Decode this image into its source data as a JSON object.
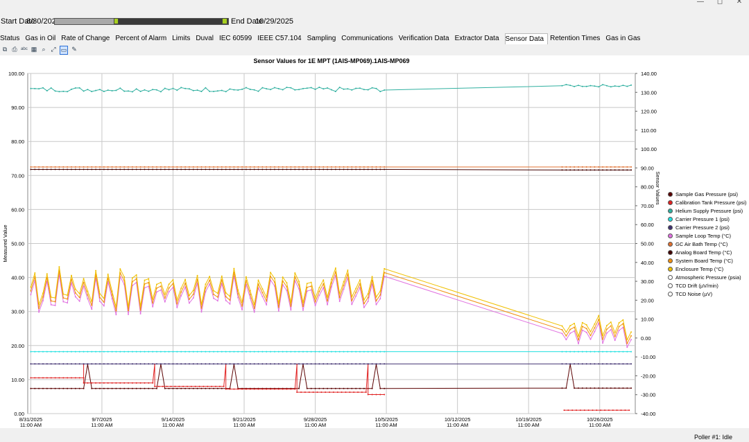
{
  "window": {
    "controls": [
      "—",
      "◻",
      "✕"
    ]
  },
  "dates": {
    "start_label": "Start Date",
    "start_value": "8/30/2025",
    "end_label": "End Date",
    "end_value": "10/29/2025"
  },
  "tabs": [
    "Status",
    "Gas in Oil",
    "Rate of Change",
    "Percent of Alarm",
    "Limits",
    "Duval",
    "IEC 60599",
    "IEEE C57.104",
    "Sampling",
    "Communications",
    "Verification Data",
    "Extractor Data",
    "Sensor Data",
    "Retention Times",
    "Gas in Gas"
  ],
  "active_tab": "Sensor Data",
  "toolbar_icons": [
    "copy-icon",
    "print-icon",
    "abc-icon",
    "table-icon",
    "zoom-icon",
    "fit-icon",
    "comment-icon",
    "pencil-icon"
  ],
  "status": {
    "text": "Poller #1: Idle"
  },
  "chart_data": {
    "type": "line",
    "title": "Sensor Values for 1E MPT (1AIS-MP069).1AIS-MP069",
    "ylabel": "Measured Value",
    "y2label": "Sensor Values",
    "ylim": [
      0,
      100
    ],
    "y2lim": [
      -40,
      140
    ],
    "yticks": [
      "100.00",
      "90.00",
      "80.00",
      "70.00",
      "60.00",
      "50.00",
      "40.00",
      "30.00",
      "20.00",
      "10.00",
      "0.00"
    ],
    "y2ticks": [
      "140.00",
      "130.00",
      "120.00",
      "110.00",
      "100.00",
      "90.00",
      "80.00",
      "70.00",
      "60.00",
      "50.00",
      "40.00",
      "30.00",
      "20.00",
      "10.00",
      "0.00",
      "-10.00",
      "-20.00",
      "-30.00",
      "-40.00"
    ],
    "xticks": [
      {
        "date": "8/31/2025",
        "time": "11:00 AM"
      },
      {
        "date": "9/7/2025",
        "time": "11:00 AM"
      },
      {
        "date": "9/14/2025",
        "time": "11:00 AM"
      },
      {
        "date": "9/21/2025",
        "time": "11:00 AM"
      },
      {
        "date": "9/28/2025",
        "time": "11:00 AM"
      },
      {
        "date": "10/5/2025",
        "time": "11:00 AM"
      },
      {
        "date": "10/12/2025",
        "time": "11:00 AM"
      },
      {
        "date": "10/19/2025",
        "time": "11:00 AM"
      },
      {
        "date": "10/26/2025",
        "time": "11:00 AM"
      }
    ],
    "x_range_days": [
      -0.3,
      59.5
    ],
    "gap_days": [
      35.0,
      52.3
    ],
    "legend_position": "right",
    "series": [
      {
        "name": "Sample Gas Pressure (psi)",
        "color": "#5a0000",
        "axis": "left",
        "pre": 7.4,
        "post": 7.5,
        "spikes": [
          {
            "x": 6,
            "to": 14.5
          }
        ],
        "kind": "const"
      },
      {
        "name": "Calibration Tank Pressure (psi)",
        "color": "#e02020",
        "axis": "left",
        "steps": [
          [
            0,
            10.5
          ],
          [
            5.2,
            9.0
          ],
          [
            12.2,
            8.0
          ],
          [
            19.2,
            7.2
          ],
          [
            26.2,
            6.3
          ],
          [
            33.2,
            5.6
          ],
          [
            52.5,
            1.0
          ]
        ],
        "kind": "steps"
      },
      {
        "name": "Helium Supply Pressure (psi)",
        "color": "#30b0a0",
        "axis": "right",
        "pre": 131.5,
        "post": 133.5,
        "kind": "noisy",
        "noise": 1.2
      },
      {
        "name": "Carrier Pressure 1 (psi)",
        "color": "#20e0e0",
        "axis": "left",
        "pre": 18.2,
        "post": 18.2,
        "kind": "const"
      },
      {
        "name": "Carrier Pressure 2 (psi)",
        "color": "#403070",
        "axis": "left",
        "pre": 14.6,
        "post": 14.6,
        "kind": "const"
      },
      {
        "name": "Sample Loop  Temp (°C)",
        "color": "#e070e0",
        "axis": "right",
        "pre": 23,
        "post": 2,
        "kind": "temp"
      },
      {
        "name": "GC Air Bath  Temp (°C)",
        "color": "#e07030",
        "axis": "left",
        "pre": 72.5,
        "post": 72.5,
        "kind": "const"
      },
      {
        "name": "Analog Board Temp (°C)",
        "color": "#400000",
        "axis": "left",
        "pre": 71.8,
        "post": 71.6,
        "kind": "const"
      },
      {
        "name": "System Board Temp (°C)",
        "color": "#f09010",
        "axis": "right",
        "pre": 25,
        "post": 4,
        "kind": "temp"
      },
      {
        "name": "Enclosure Temp (°C)",
        "color": "#f0c000",
        "axis": "right",
        "pre": 27,
        "post": 6,
        "kind": "temp"
      },
      {
        "name": "Atmospheric Pressure (psia)",
        "color": "#ffffff",
        "axis": "left",
        "kind": "none"
      },
      {
        "name": "TCD Drift (µV/min)",
        "color": "#ffffff",
        "axis": "left",
        "kind": "none"
      },
      {
        "name": "TCD Noise (µV)",
        "color": "#ffffff",
        "axis": "left",
        "kind": "none"
      }
    ]
  }
}
